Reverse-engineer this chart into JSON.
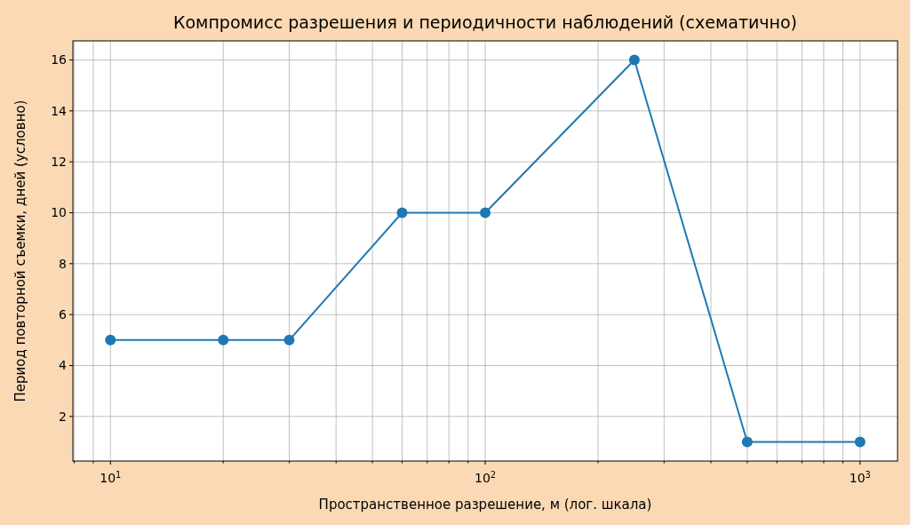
{
  "chart_data": {
    "type": "line",
    "title": "Компромисс разрешения и периодичности наблюдений (схематично)",
    "xlabel": "Пространственное разрешение, м (лог. шкала)",
    "ylabel": "Период повторной съемки, дней (условно)",
    "x": [
      10,
      20,
      30,
      60,
      100,
      250,
      500,
      1000
    ],
    "series": [
      {
        "color": "#1f77b4",
        "values": [
          5,
          5,
          5,
          10,
          10,
          16,
          1,
          1
        ]
      }
    ],
    "log": "x",
    "marker": "circle",
    "line_style": "solid",
    "grid": true,
    "xlim": [
      7.94,
      1259
    ],
    "xticks": [
      {
        "value": 8,
        "label": null
      },
      {
        "value": 9,
        "label": null
      },
      {
        "value": 10,
        "label": "10$^{1}$"
      },
      {
        "value": 20,
        "label": null
      },
      {
        "value": 30,
        "label": null
      },
      {
        "value": 40,
        "label": null
      },
      {
        "value": 50,
        "label": null
      },
      {
        "value": 60,
        "label": null
      },
      {
        "value": 70,
        "label": null
      },
      {
        "value": 80,
        "label": null
      },
      {
        "value": 90,
        "label": null
      },
      {
        "value": 100,
        "label": "10$^{2}$"
      },
      {
        "value": 200,
        "label": null
      },
      {
        "value": 300,
        "label": null
      },
      {
        "value": 400,
        "label": null
      },
      {
        "value": 500,
        "label": null
      },
      {
        "value": 600,
        "label": null
      },
      {
        "value": 700,
        "label": null
      },
      {
        "value": 800,
        "label": null
      },
      {
        "value": 900,
        "label": null
      },
      {
        "value": 1000,
        "label": "10$^{3}$"
      }
    ],
    "ylim": [
      0.25,
      16.75
    ],
    "yticks": [
      2,
      4,
      6,
      8,
      10,
      12,
      14,
      16
    ]
  }
}
